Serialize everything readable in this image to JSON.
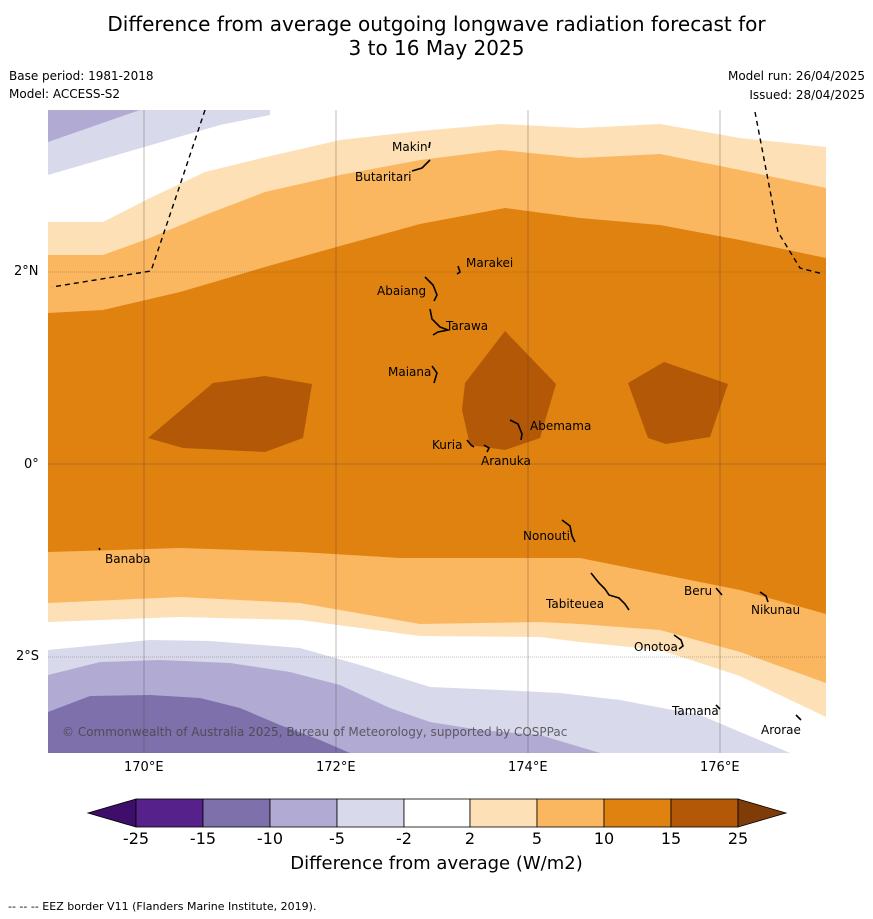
{
  "title": {
    "line1": "Difference from average outgoing longwave radiation forecast for",
    "line2": "3 to 16 May 2025"
  },
  "meta": {
    "base_period": "Base period: 1981-2018",
    "model": "Model: ACCESS-S2",
    "model_run": "Model run: 26/04/2025",
    "issued": "Issued: 28/04/2025"
  },
  "map": {
    "lat_ticks": [
      "2°N",
      "0°",
      "2°S"
    ],
    "lon_ticks": [
      "170°E",
      "172°E",
      "174°E",
      "176°E"
    ],
    "copyright": "© Commonwealth of Australia 2025, Bureau of Meteorology, supported by COSPPac",
    "places": [
      "Makin",
      "Butaritari",
      "Marakei",
      "Abaiang",
      "Tarawa",
      "Maiana",
      "Abemama",
      "Kuria",
      "Aranuka",
      "Nonouti",
      "Banaba",
      "Tabiteuea",
      "Beru",
      "Nikunau",
      "Onotoa",
      "Tamana",
      "Arorae"
    ]
  },
  "colorbar": {
    "labels": [
      "-25",
      "-15",
      "-10",
      "-5",
      "-2",
      "2",
      "5",
      "10",
      "15",
      "25"
    ],
    "colors": [
      "#3f0d6a",
      "#56218a",
      "#7e70ab",
      "#b1abd3",
      "#d9d9ec",
      "#ffffff",
      "#fde0b5",
      "#fbb660",
      "#e0820f",
      "#b35806",
      "#7f3b08"
    ],
    "title": "Difference from average (W/m2)"
  },
  "footer": "--  --  -- EEZ border V11 (Flanders Marine Institute, 2019)."
}
